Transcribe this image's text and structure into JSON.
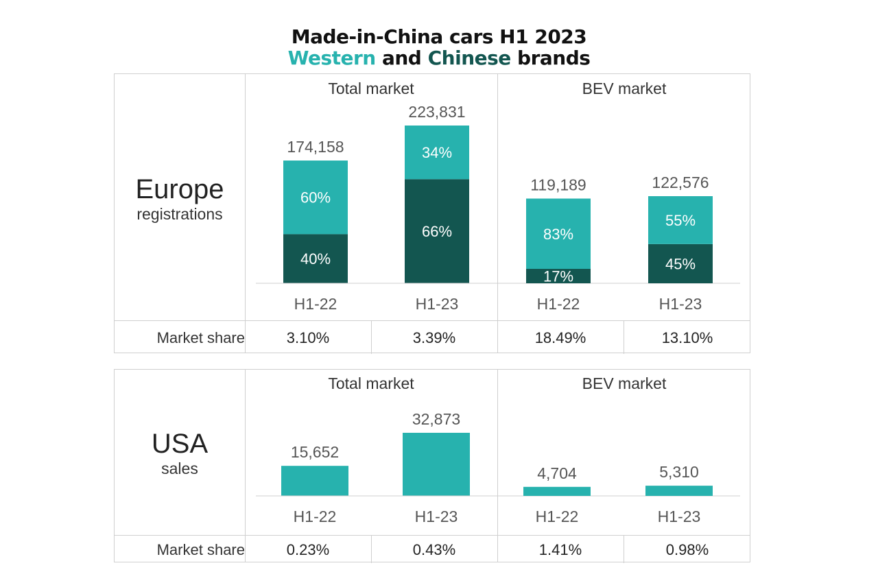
{
  "title": {
    "line1": "Made-in-China cars H1 2023",
    "line2_western": "Western",
    "line2_and": " and ",
    "line2_chinese": "Chinese",
    "line2_rest": " brands"
  },
  "colors": {
    "western": "#27b2ae",
    "chinese": "#135650",
    "grid": "#cfcfcf"
  },
  "europe": {
    "region": "Europe",
    "subtitle": "registrations",
    "total_market_label": "Total market",
    "bev_market_label": "BEV market",
    "share_label": "Market share",
    "shares": [
      "3.10%",
      "3.39%",
      "18.49%",
      "13.10%"
    ]
  },
  "usa": {
    "region": "USA",
    "subtitle": "sales",
    "total_market_label": "Total market",
    "bev_market_label": "BEV market",
    "share_label": "Market share",
    "shares": [
      "0.23%",
      "0.43%",
      "1.41%",
      "0.98%"
    ]
  },
  "chart_data": [
    {
      "type": "bar",
      "title": "Europe registrations — Total market",
      "stacked": true,
      "categories": [
        "H1-22",
        "H1-23"
      ],
      "totals": [
        174158,
        223831
      ],
      "total_labels": [
        "174,158",
        "223,831"
      ],
      "series": [
        {
          "name": "Chinese",
          "color": "#135650",
          "percent": [
            40,
            66
          ],
          "labels": [
            "40%",
            "66%"
          ]
        },
        {
          "name": "Western",
          "color": "#27b2ae",
          "percent": [
            60,
            34
          ],
          "labels": [
            "60%",
            "34%"
          ]
        }
      ]
    },
    {
      "type": "bar",
      "title": "Europe registrations — BEV market",
      "stacked": true,
      "categories": [
        "H1-22",
        "H1-23"
      ],
      "totals": [
        119189,
        122576
      ],
      "total_labels": [
        "119,189",
        "122,576"
      ],
      "series": [
        {
          "name": "Chinese",
          "color": "#135650",
          "percent": [
            17,
            45
          ],
          "labels": [
            "17%",
            "45%"
          ]
        },
        {
          "name": "Western",
          "color": "#27b2ae",
          "percent": [
            83,
            55
          ],
          "labels": [
            "83%",
            "55%"
          ]
        }
      ]
    },
    {
      "type": "bar",
      "title": "USA sales — Total market",
      "stacked": false,
      "categories": [
        "H1-22",
        "H1-23"
      ],
      "totals": [
        15652,
        32873
      ],
      "total_labels": [
        "15,652",
        "32,873"
      ],
      "series": [
        {
          "name": "Total",
          "color": "#27b2ae",
          "values": [
            15652,
            32873
          ]
        }
      ]
    },
    {
      "type": "bar",
      "title": "USA sales — BEV market",
      "stacked": false,
      "categories": [
        "H1-22",
        "H1-23"
      ],
      "totals": [
        4704,
        5310
      ],
      "total_labels": [
        "4,704",
        "5,310"
      ],
      "series": [
        {
          "name": "Total",
          "color": "#27b2ae",
          "values": [
            4704,
            5310
          ]
        }
      ]
    }
  ]
}
